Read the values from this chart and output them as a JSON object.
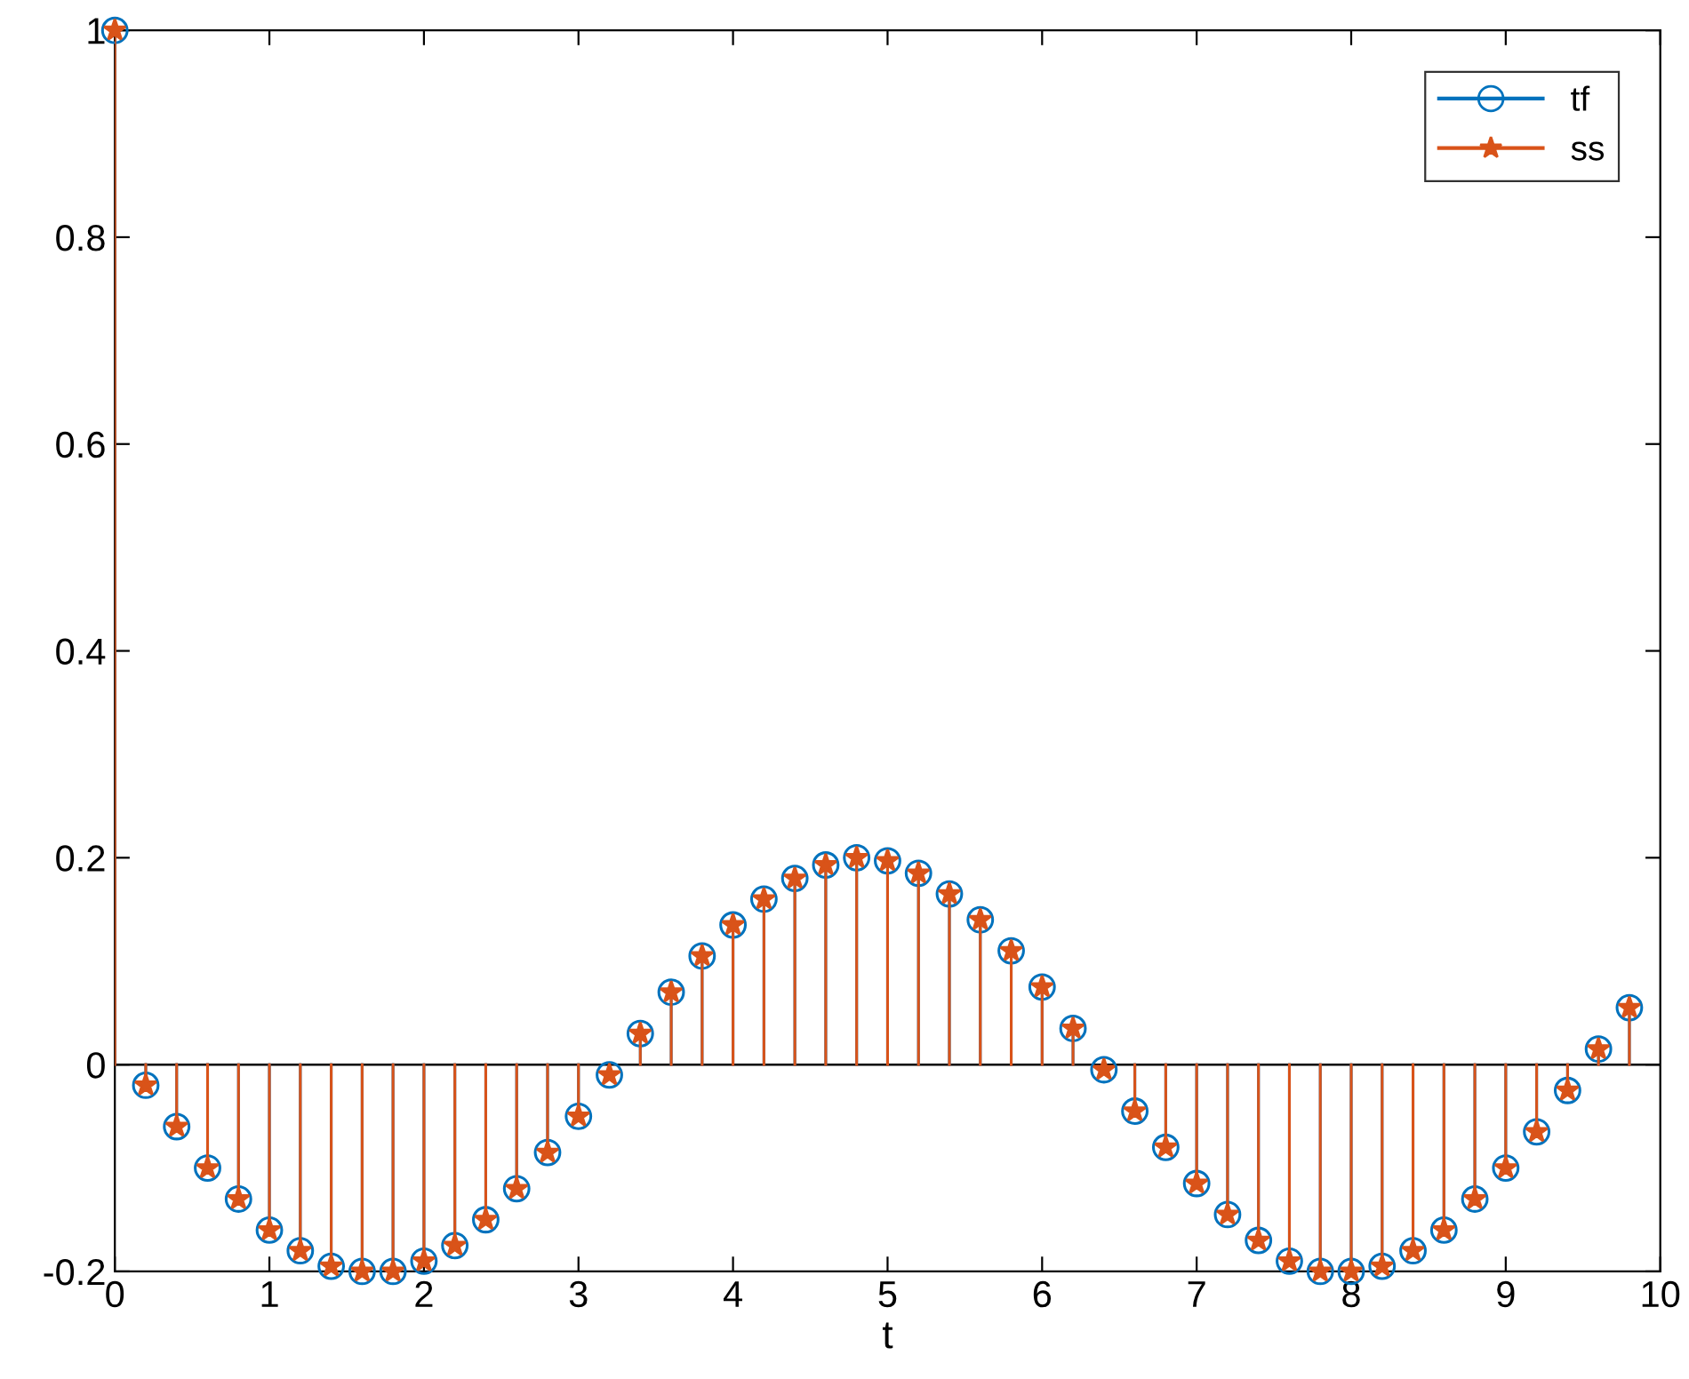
{
  "chart_data": {
    "type": "lollipop",
    "xlabel": "t",
    "x": [
      0,
      0.2,
      0.4,
      0.6,
      0.8,
      1.0,
      1.2,
      1.4,
      1.6,
      1.8,
      2.0,
      2.2,
      2.4,
      2.6,
      2.8,
      3.0,
      3.2,
      3.4,
      3.6,
      3.8,
      4.0,
      4.2,
      4.4,
      4.6,
      4.8,
      5.0,
      5.2,
      5.4,
      5.6,
      5.8,
      6.0,
      6.2,
      6.4,
      6.6,
      6.8,
      7.0,
      7.2,
      7.4,
      7.6,
      7.8,
      8.0,
      8.2,
      8.4,
      8.6,
      8.8,
      9.0,
      9.2,
      9.4,
      9.6,
      9.8
    ],
    "series": [
      {
        "name": "tf",
        "color": "#0072bd",
        "marker": "circle",
        "values": [
          1,
          -0.02,
          -0.06,
          -0.1,
          -0.13,
          -0.16,
          -0.18,
          -0.195,
          -0.2,
          -0.2,
          -0.19,
          -0.175,
          -0.15,
          -0.12,
          -0.085,
          -0.05,
          -0.01,
          0.03,
          0.07,
          0.105,
          0.135,
          0.16,
          0.18,
          0.193,
          0.2,
          0.197,
          0.185,
          0.165,
          0.14,
          0.11,
          0.075,
          0.035,
          -0.005,
          -0.045,
          -0.08,
          -0.115,
          -0.145,
          -0.17,
          -0.19,
          -0.2,
          -0.2,
          -0.195,
          -0.18,
          -0.16,
          -0.13,
          -0.1,
          -0.065,
          -0.025,
          0.015,
          0.055
        ]
      },
      {
        "name": "ss",
        "color": "#d95319",
        "marker": "star",
        "values": [
          1,
          -0.02,
          -0.06,
          -0.1,
          -0.13,
          -0.16,
          -0.18,
          -0.195,
          -0.2,
          -0.2,
          -0.19,
          -0.175,
          -0.15,
          -0.12,
          -0.085,
          -0.05,
          -0.01,
          0.03,
          0.07,
          0.105,
          0.135,
          0.16,
          0.18,
          0.193,
          0.2,
          0.197,
          0.185,
          0.165,
          0.14,
          0.11,
          0.075,
          0.035,
          -0.005,
          -0.045,
          -0.08,
          -0.115,
          -0.145,
          -0.17,
          -0.19,
          -0.2,
          -0.2,
          -0.195,
          -0.18,
          -0.16,
          -0.13,
          -0.1,
          -0.065,
          -0.025,
          0.015,
          0.055
        ]
      }
    ],
    "ref_lines": [
      {
        "axis": "y",
        "value": 0,
        "color": "#000000",
        "line_style": "solid"
      }
    ],
    "xlim": [
      0,
      10
    ],
    "xticks": [
      0,
      1,
      2,
      3,
      4,
      5,
      6,
      7,
      8,
      9,
      10
    ],
    "ylim": [
      -0.2,
      1
    ],
    "yticks": [
      {
        "value": -0.2,
        "label": "-0.2"
      },
      0,
      0.2,
      0.4,
      0.6,
      0.8,
      1
    ],
    "legend": "top right",
    "grid": false
  }
}
